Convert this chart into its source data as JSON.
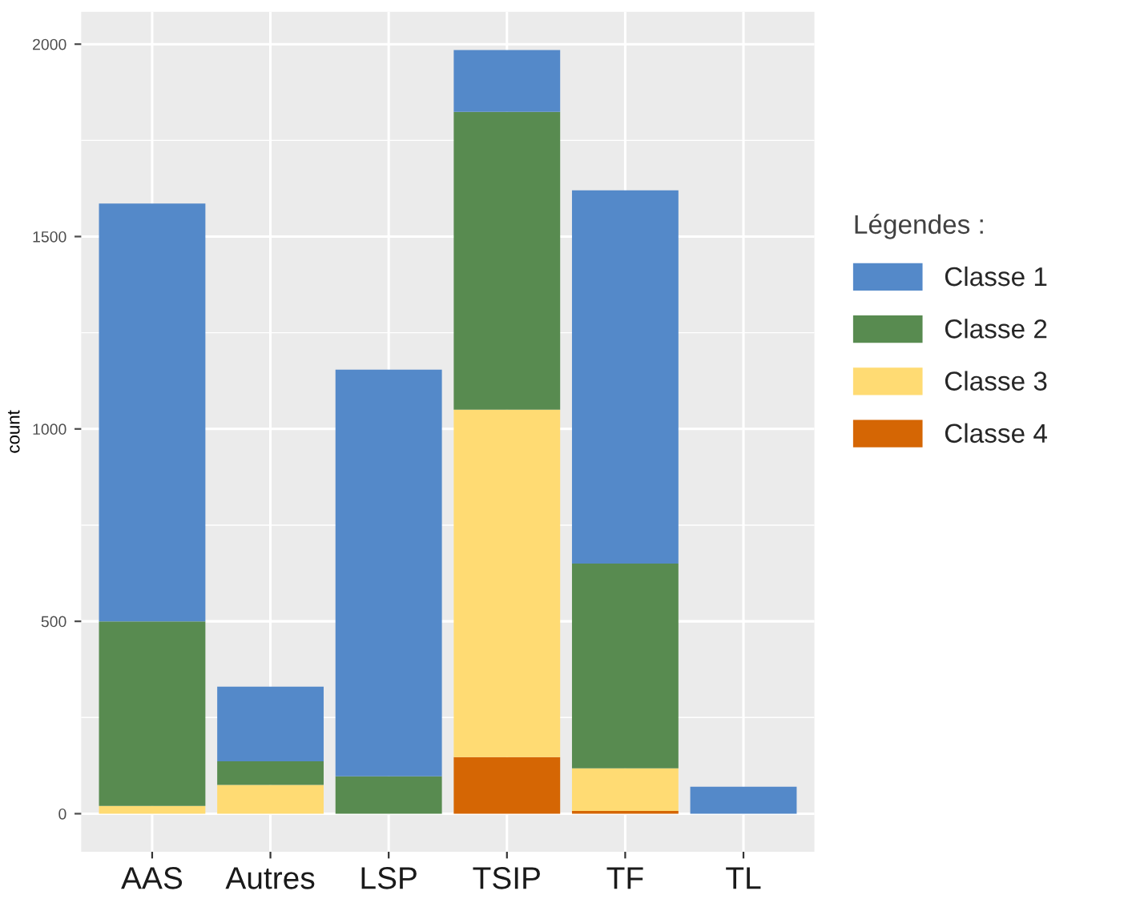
{
  "chart_data": {
    "type": "bar",
    "stacked": true,
    "ylabel": "count",
    "legend_title": "Légendes :",
    "legend": "right",
    "grid": true,
    "categories": [
      "AAS",
      "Autres",
      "LSP",
      "TSIP",
      "TF",
      "TL"
    ],
    "ylim": [
      -99,
      2084
    ],
    "yticks": [
      0,
      500,
      1000,
      1500,
      2000
    ],
    "series": [
      {
        "name": "Classe 4",
        "color": "#d56604",
        "values": [
          null,
          null,
          null,
          147,
          7,
          null
        ]
      },
      {
        "name": "Classe 3",
        "color": "#ffdb73",
        "values": [
          20,
          75,
          null,
          903,
          111,
          null
        ]
      },
      {
        "name": "Classe 2",
        "color": "#588b50",
        "values": [
          480,
          61,
          97,
          774,
          532,
          null
        ]
      },
      {
        "name": "Classe 1",
        "color": "#5489c9",
        "values": [
          1086,
          194,
          1057,
          161,
          970,
          70
        ]
      }
    ]
  }
}
